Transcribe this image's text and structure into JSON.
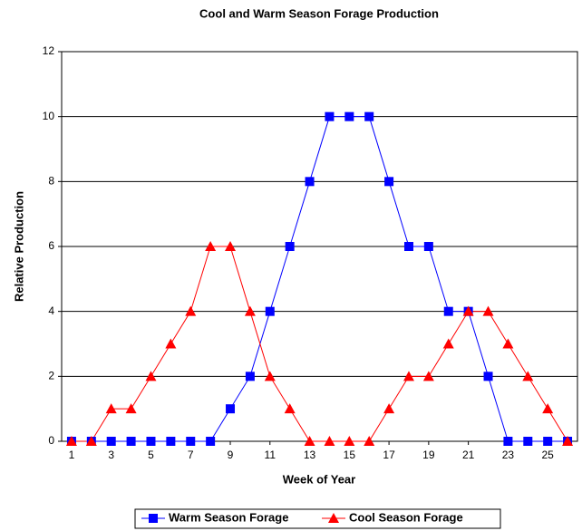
{
  "chart_data": {
    "type": "line",
    "title": "Cool and Warm Season Forage Production",
    "x_label": "Week of Year",
    "y_label": "Relative Production",
    "x": [
      1,
      2,
      3,
      4,
      5,
      6,
      7,
      8,
      9,
      10,
      11,
      12,
      13,
      14,
      15,
      16,
      17,
      18,
      19,
      20,
      21,
      22,
      23,
      24,
      25,
      26
    ],
    "series": [
      {
        "name": "Warm Season Forage",
        "color": "#0000ff",
        "marker": "square",
        "values": [
          0,
          0,
          0,
          0,
          0,
          0,
          0,
          0,
          1,
          2,
          4,
          6,
          8,
          10,
          10,
          10,
          8,
          6,
          6,
          4,
          4,
          2,
          0,
          0,
          0,
          0
        ]
      },
      {
        "name": "Cool Season Forage",
        "color": "#ff0000",
        "marker": "triangle",
        "values": [
          0,
          0,
          1,
          1,
          2,
          3,
          4,
          6,
          6,
          4,
          2,
          1,
          0,
          0,
          0,
          0,
          1,
          2,
          2,
          3,
          4,
          4,
          3,
          2,
          1,
          0
        ]
      }
    ],
    "xlim": [
      0.5,
      26.5
    ],
    "xticks": [
      1,
      3,
      5,
      7,
      9,
      11,
      13,
      15,
      17,
      19,
      21,
      23,
      25
    ],
    "ylim": [
      0,
      12
    ],
    "yticks": [
      0,
      2,
      4,
      6,
      8,
      10,
      12
    ],
    "grid": true,
    "legend": "bottom"
  }
}
